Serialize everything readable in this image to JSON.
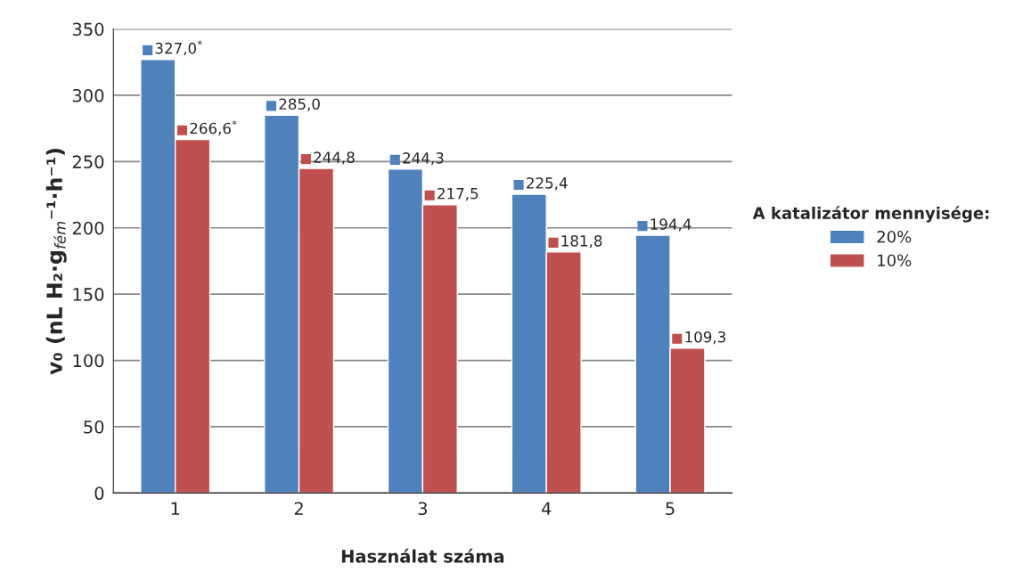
{
  "chart_data": {
    "type": "bar",
    "xlabel": "Használat száma",
    "ylabel": "v₀ (nL H₂·g$_{fém}$⁻¹·h⁻¹)",
    "legend_title": "A katalizátor mennyisége:",
    "categories": [
      "1",
      "2",
      "3",
      "4",
      "5"
    ],
    "series": [
      {
        "name": "20%",
        "color": "#4f81bd",
        "values": [
          327.0,
          285.0,
          244.3,
          225.4,
          194.4
        ],
        "value_labels": [
          "327,0$^{*}$",
          "285,0",
          "244,3",
          "225,4",
          "194,4"
        ]
      },
      {
        "name": "10%",
        "color": "#c0504d",
        "values": [
          266.6,
          244.8,
          217.5,
          181.8,
          109.3
        ],
        "value_labels": [
          "266,6$^{*}$",
          "244,8",
          "217,5",
          "181,8",
          "109,3"
        ]
      }
    ],
    "ylim": [
      0,
      350
    ],
    "yticks": [
      0,
      50,
      100,
      150,
      200,
      250,
      300,
      350
    ],
    "grid": "y",
    "legend": "right"
  }
}
